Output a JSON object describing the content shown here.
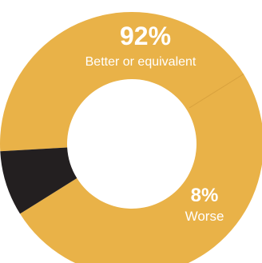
{
  "chart_data": {
    "type": "pie",
    "donut": true,
    "start_angle_deg": 148,
    "direction": "counterclockwise",
    "slices": [
      {
        "label": "Better or equivalent",
        "value": 92,
        "value_label": "92%",
        "color": "#e9b248"
      },
      {
        "label": "Worse",
        "value": 8,
        "value_label": "8%",
        "color": "#231f20"
      }
    ],
    "separator_color": "#d9a23e",
    "legend": "none"
  }
}
